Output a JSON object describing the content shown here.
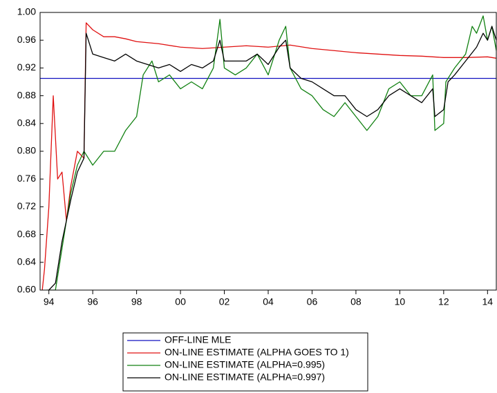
{
  "chart_data": {
    "type": "line",
    "xlim": [
      1993.6,
      2014.4
    ],
    "xticks": [
      {
        "value": 1994,
        "label": "94"
      },
      {
        "value": 1996,
        "label": "96"
      },
      {
        "value": 1998,
        "label": "98"
      },
      {
        "value": 2000,
        "label": "00"
      },
      {
        "value": 2002,
        "label": "02"
      },
      {
        "value": 2004,
        "label": "04"
      },
      {
        "value": 2006,
        "label": "06"
      },
      {
        "value": 2008,
        "label": "08"
      },
      {
        "value": 2010,
        "label": "10"
      },
      {
        "value": 2012,
        "label": "12"
      },
      {
        "value": 2014,
        "label": "14"
      }
    ],
    "ylim": [
      0.6,
      1.0
    ],
    "yticks": [
      {
        "value": 0.6,
        "label": "0.60"
      },
      {
        "value": 0.64,
        "label": "0.64"
      },
      {
        "value": 0.68,
        "label": "0.68"
      },
      {
        "value": 0.72,
        "label": "0.72"
      },
      {
        "value": 0.76,
        "label": "0.76"
      },
      {
        "value": 0.8,
        "label": "0.80"
      },
      {
        "value": 0.84,
        "label": "0.84"
      },
      {
        "value": 0.88,
        "label": "0.88"
      },
      {
        "value": 0.92,
        "label": "0.92"
      },
      {
        "value": 0.96,
        "label": "0.96"
      },
      {
        "value": 1.0,
        "label": "1.00"
      }
    ],
    "legend": "bottom",
    "series": [
      {
        "name": "OFF-LINE MLE",
        "color": "#1010c0",
        "x": [
          1993.6,
          2014.4
        ],
        "values": [
          0.905,
          0.905
        ]
      },
      {
        "name": "ON-LINE ESTIMATE (ALPHA GOES TO 1)",
        "color": "#e01010",
        "x": [
          1993.7,
          1993.8,
          1994.0,
          1994.2,
          1994.4,
          1994.6,
          1994.8,
          1995.0,
          1995.3,
          1995.6,
          1995.7,
          1996.0,
          1996.5,
          1997.0,
          1997.5,
          1998.0,
          1999.0,
          2000.0,
          2001.0,
          2002.0,
          2003.0,
          2004.0,
          2005.0,
          2006.0,
          2007.0,
          2008.0,
          2009.0,
          2010.0,
          2011.0,
          2012.0,
          2013.0,
          2014.0,
          2014.4
        ],
        "values": [
          0.6,
          0.63,
          0.72,
          0.88,
          0.76,
          0.77,
          0.7,
          0.75,
          0.8,
          0.79,
          0.985,
          0.975,
          0.965,
          0.965,
          0.962,
          0.958,
          0.955,
          0.95,
          0.948,
          0.95,
          0.952,
          0.95,
          0.953,
          0.948,
          0.945,
          0.942,
          0.94,
          0.938,
          0.937,
          0.935,
          0.935,
          0.936,
          0.934
        ]
      },
      {
        "name": "ON-LINE ESTIMATE (ALPHA=0.995)",
        "color": "#108010",
        "x": [
          1993.9,
          1994.3,
          1994.6,
          1995.0,
          1995.3,
          1995.6,
          1995.8,
          1996.0,
          1996.5,
          1997.0,
          1997.5,
          1998.0,
          1998.3,
          1998.7,
          1999.0,
          1999.5,
          2000.0,
          2000.5,
          2001.0,
          2001.5,
          2001.8,
          2002.0,
          2002.5,
          2003.0,
          2003.5,
          2004.0,
          2004.5,
          2004.8,
          2005.0,
          2005.5,
          2006.0,
          2006.5,
          2007.0,
          2007.5,
          2008.0,
          2008.5,
          2009.0,
          2009.5,
          2010.0,
          2010.5,
          2011.0,
          2011.5,
          2011.6,
          2012.0,
          2012.1,
          2012.5,
          2013.0,
          2013.3,
          2013.5,
          2013.8,
          2014.0,
          2014.2,
          2014.4
        ],
        "values": [
          0.6,
          0.6,
          0.66,
          0.74,
          0.78,
          0.8,
          0.79,
          0.78,
          0.8,
          0.8,
          0.83,
          0.85,
          0.91,
          0.93,
          0.9,
          0.91,
          0.89,
          0.9,
          0.89,
          0.92,
          0.99,
          0.92,
          0.91,
          0.92,
          0.94,
          0.91,
          0.96,
          0.98,
          0.92,
          0.89,
          0.88,
          0.86,
          0.85,
          0.87,
          0.85,
          0.83,
          0.85,
          0.89,
          0.9,
          0.88,
          0.88,
          0.91,
          0.83,
          0.84,
          0.9,
          0.92,
          0.94,
          0.98,
          0.97,
          0.995,
          0.96,
          0.98,
          0.945
        ]
      },
      {
        "name": "ON-LINE ESTIMATE (ALPHA=0.997)",
        "color": "#000000",
        "x": [
          1994.0,
          1994.3,
          1994.6,
          1995.0,
          1995.3,
          1995.6,
          1995.7,
          1996.0,
          1996.5,
          1997.0,
          1997.5,
          1998.0,
          1998.5,
          1999.0,
          1999.5,
          2000.0,
          2000.5,
          2001.0,
          2001.5,
          2001.8,
          2002.0,
          2002.5,
          2003.0,
          2003.5,
          2004.0,
          2004.5,
          2004.8,
          2005.0,
          2005.5,
          2006.0,
          2006.5,
          2007.0,
          2007.5,
          2008.0,
          2008.5,
          2009.0,
          2009.5,
          2010.0,
          2010.5,
          2011.0,
          2011.5,
          2011.6,
          2012.0,
          2012.2,
          2012.5,
          2013.0,
          2013.5,
          2013.8,
          2014.0,
          2014.2,
          2014.4
        ],
        "values": [
          0.6,
          0.61,
          0.67,
          0.73,
          0.77,
          0.79,
          0.97,
          0.94,
          0.935,
          0.93,
          0.94,
          0.93,
          0.925,
          0.92,
          0.925,
          0.915,
          0.925,
          0.92,
          0.93,
          0.96,
          0.93,
          0.93,
          0.93,
          0.94,
          0.925,
          0.95,
          0.96,
          0.92,
          0.905,
          0.9,
          0.89,
          0.88,
          0.88,
          0.86,
          0.85,
          0.86,
          0.88,
          0.89,
          0.88,
          0.87,
          0.89,
          0.85,
          0.86,
          0.9,
          0.91,
          0.93,
          0.95,
          0.97,
          0.96,
          0.98,
          0.96
        ]
      }
    ]
  }
}
